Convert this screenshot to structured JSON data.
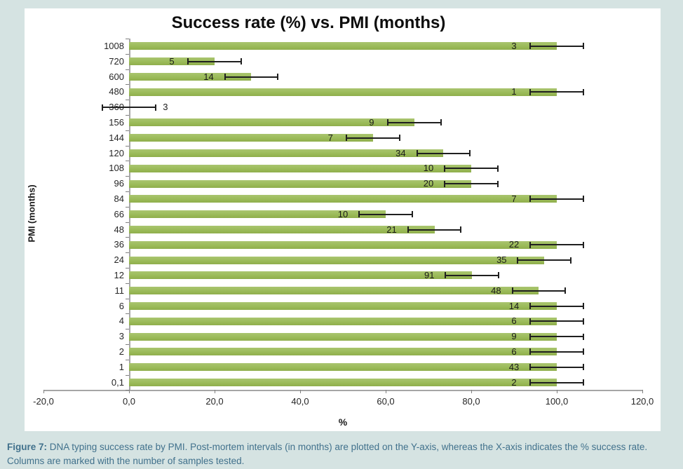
{
  "figure": {
    "caption": {
      "label": "Figure 7:",
      "text": " DNA typing success rate by PMI. Post-mortem intervals (in months) are plotted on the Y-axis, whereas the X-axis indicates the % success rate. Columns are marked with the number of samples tested."
    }
  },
  "chart_data": {
    "type": "bar",
    "orientation": "horizontal",
    "title": "Success rate (%) vs. PMI (months)",
    "xlabel": "%",
    "ylabel": "PMI (months)",
    "xlim": [
      -20,
      120
    ],
    "xtick_values": [
      -20,
      0,
      20,
      40,
      60,
      80,
      100,
      120
    ],
    "xtick_labels": [
      "-20,0",
      "0,0",
      "20,0",
      "40,0",
      "60,0",
      "80,0",
      "100,0",
      "120,0"
    ],
    "grid": false,
    "legend": false,
    "error_margin_pct": 6.2,
    "rows": [
      {
        "pmi_months": "1008",
        "samples": 3,
        "success_rate_pct": 100.0
      },
      {
        "pmi_months": "720",
        "samples": 5,
        "success_rate_pct": 20.0
      },
      {
        "pmi_months": "600",
        "samples": 14,
        "success_rate_pct": 28.6
      },
      {
        "pmi_months": "480",
        "samples": 1,
        "success_rate_pct": 100.0
      },
      {
        "pmi_months": "360",
        "samples": 3,
        "success_rate_pct": 0.0
      },
      {
        "pmi_months": "156",
        "samples": 9,
        "success_rate_pct": 66.7
      },
      {
        "pmi_months": "144",
        "samples": 7,
        "success_rate_pct": 57.1
      },
      {
        "pmi_months": "120",
        "samples": 34,
        "success_rate_pct": 73.5
      },
      {
        "pmi_months": "108",
        "samples": 10,
        "success_rate_pct": 80.0
      },
      {
        "pmi_months": "96",
        "samples": 20,
        "success_rate_pct": 80.0
      },
      {
        "pmi_months": "84",
        "samples": 7,
        "success_rate_pct": 100.0
      },
      {
        "pmi_months": "66",
        "samples": 10,
        "success_rate_pct": 60.0
      },
      {
        "pmi_months": "48",
        "samples": 21,
        "success_rate_pct": 71.4
      },
      {
        "pmi_months": "36",
        "samples": 22,
        "success_rate_pct": 100.0
      },
      {
        "pmi_months": "24",
        "samples": 35,
        "success_rate_pct": 97.1
      },
      {
        "pmi_months": "12",
        "samples": 91,
        "success_rate_pct": 80.2
      },
      {
        "pmi_months": "11",
        "samples": 48,
        "success_rate_pct": 95.8
      },
      {
        "pmi_months": "6",
        "samples": 14,
        "success_rate_pct": 100.0
      },
      {
        "pmi_months": "4",
        "samples": 6,
        "success_rate_pct": 100.0
      },
      {
        "pmi_months": "3",
        "samples": 9,
        "success_rate_pct": 100.0
      },
      {
        "pmi_months": "2",
        "samples": 6,
        "success_rate_pct": 100.0
      },
      {
        "pmi_months": "1",
        "samples": 43,
        "success_rate_pct": 100.0
      },
      {
        "pmi_months": "0,1",
        "samples": 2,
        "success_rate_pct": 100.0
      }
    ]
  },
  "colors": {
    "background": "#d5e3e2",
    "panel": "#ffffff",
    "bar": "#9bbb59",
    "bar_edge": "#8fae4c",
    "error_bar": "#1f1f1f",
    "axis": "#a6a6a6",
    "caption_text": "#41718c",
    "label_text": "#262626"
  }
}
